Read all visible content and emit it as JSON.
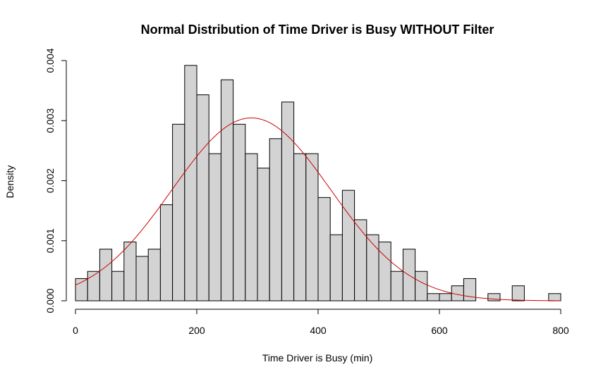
{
  "chart_data": {
    "type": "bar",
    "title": "Normal Distribution of Time Driver is Busy WITHOUT Filter",
    "xlabel": "Time Driver is Busy (min)",
    "ylabel": "Density",
    "xlim": [
      0,
      800
    ],
    "ylim": [
      0,
      0.004
    ],
    "x_ticks": [
      "0",
      "200",
      "400",
      "600",
      "800"
    ],
    "y_ticks": [
      "0.000",
      "0.001",
      "0.002",
      "0.003",
      "0.004"
    ],
    "bin_width": 20,
    "bins": [
      {
        "start": 0,
        "end": 20,
        "density": 0.00037
      },
      {
        "start": 20,
        "end": 40,
        "density": 0.00049
      },
      {
        "start": 40,
        "end": 60,
        "density": 0.00086
      },
      {
        "start": 60,
        "end": 80,
        "density": 0.00049
      },
      {
        "start": 80,
        "end": 100,
        "density": 0.00098
      },
      {
        "start": 100,
        "end": 120,
        "density": 0.00074
      },
      {
        "start": 120,
        "end": 140,
        "density": 0.00086
      },
      {
        "start": 140,
        "end": 160,
        "density": 0.0016
      },
      {
        "start": 160,
        "end": 180,
        "density": 0.00294
      },
      {
        "start": 180,
        "end": 200,
        "density": 0.00392
      },
      {
        "start": 200,
        "end": 220,
        "density": 0.00343
      },
      {
        "start": 220,
        "end": 240,
        "density": 0.00245
      },
      {
        "start": 240,
        "end": 260,
        "density": 0.00368
      },
      {
        "start": 260,
        "end": 280,
        "density": 0.00294
      },
      {
        "start": 280,
        "end": 300,
        "density": 0.00245
      },
      {
        "start": 300,
        "end": 320,
        "density": 0.00221
      },
      {
        "start": 320,
        "end": 340,
        "density": 0.0027
      },
      {
        "start": 340,
        "end": 360,
        "density": 0.00331
      },
      {
        "start": 360,
        "end": 380,
        "density": 0.00245
      },
      {
        "start": 380,
        "end": 400,
        "density": 0.00245
      },
      {
        "start": 400,
        "end": 420,
        "density": 0.00172
      },
      {
        "start": 420,
        "end": 440,
        "density": 0.0011
      },
      {
        "start": 440,
        "end": 460,
        "density": 0.00184
      },
      {
        "start": 460,
        "end": 480,
        "density": 0.00135
      },
      {
        "start": 480,
        "end": 500,
        "density": 0.0011
      },
      {
        "start": 500,
        "end": 520,
        "density": 0.00098
      },
      {
        "start": 520,
        "end": 540,
        "density": 0.00049
      },
      {
        "start": 540,
        "end": 560,
        "density": 0.00086
      },
      {
        "start": 560,
        "end": 580,
        "density": 0.00049
      },
      {
        "start": 580,
        "end": 600,
        "density": 0.00012
      },
      {
        "start": 600,
        "end": 620,
        "density": 0.00012
      },
      {
        "start": 620,
        "end": 640,
        "density": 0.00025
      },
      {
        "start": 640,
        "end": 660,
        "density": 0.00037
      },
      {
        "start": 660,
        "end": 680,
        "density": 0.0
      },
      {
        "start": 680,
        "end": 700,
        "density": 0.00012
      },
      {
        "start": 700,
        "end": 720,
        "density": 0.0
      },
      {
        "start": 720,
        "end": 740,
        "density": 0.00025
      },
      {
        "start": 740,
        "end": 760,
        "density": 0.0
      },
      {
        "start": 760,
        "end": 780,
        "density": 0.0
      },
      {
        "start": 780,
        "end": 800,
        "density": 0.00012
      }
    ],
    "normal_curve": {
      "mean": 290,
      "sd": 131,
      "color": "#cc0000"
    },
    "bar_color": "#d3d3d3",
    "grid": false,
    "legend": "none"
  }
}
